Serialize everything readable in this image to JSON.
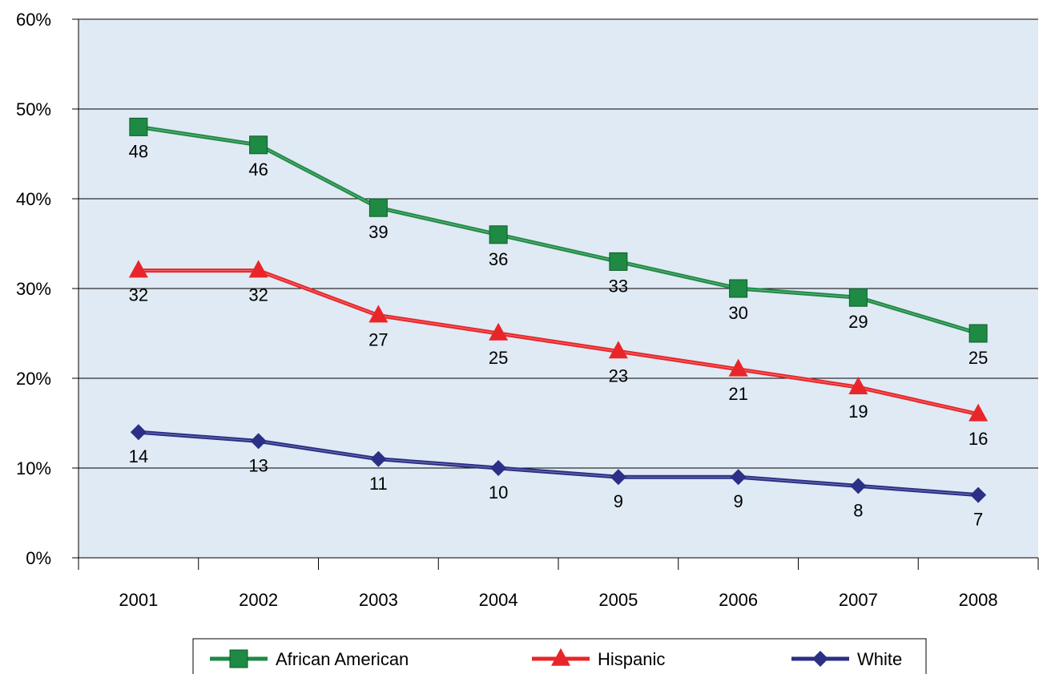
{
  "chart_data": {
    "type": "line",
    "categories": [
      "2001",
      "2002",
      "2003",
      "2004",
      "2005",
      "2006",
      "2007",
      "2008"
    ],
    "ylim": [
      0,
      60
    ],
    "yticks": [
      "0%",
      "10%",
      "20%",
      "30%",
      "40%",
      "50%",
      "60%"
    ],
    "grid": true,
    "legend_position": "bottom",
    "plot_background": "#dfeaf4",
    "series": [
      {
        "name": "African American",
        "color": "#1e8a44",
        "marker": "square",
        "values": [
          48,
          46,
          39,
          36,
          33,
          30,
          29,
          25
        ],
        "labels": [
          "48",
          "46",
          "39",
          "36",
          "33",
          "30",
          "29",
          "25"
        ]
      },
      {
        "name": "Hispanic",
        "color": "#e8262a",
        "marker": "triangle",
        "values": [
          32,
          32,
          27,
          25,
          23,
          21,
          19,
          16
        ],
        "labels": [
          "32",
          "32",
          "27",
          "25",
          "23",
          "21",
          "19",
          "16"
        ]
      },
      {
        "name": "White",
        "color": "#2b2f86",
        "marker": "diamond",
        "values": [
          14,
          13,
          11,
          10,
          9,
          9,
          8,
          7
        ],
        "labels": [
          "14",
          "13",
          "11",
          "10",
          "9",
          "9",
          "8",
          "7"
        ]
      }
    ]
  }
}
